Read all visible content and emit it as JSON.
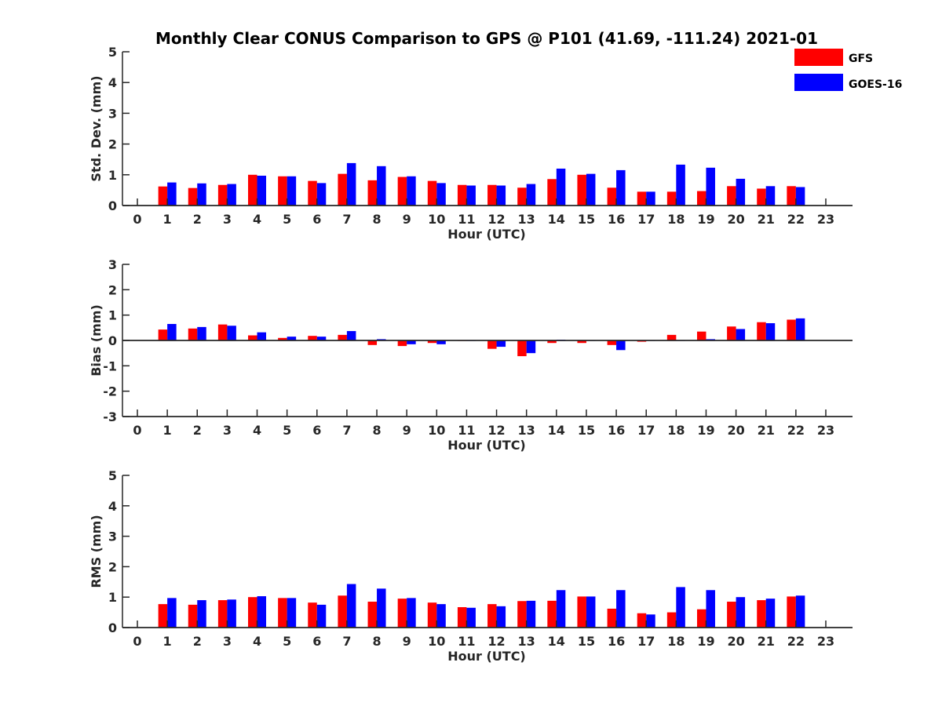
{
  "title": "Monthly Clear CONUS Comparison to GPS @ P101 (41.69, -111.24) 2021-01",
  "colors": {
    "GFS": "#ff0000",
    "GOES-16": "#0000ff",
    "axis": "#262626"
  },
  "legend": {
    "placement": "top-right",
    "entries": [
      "GFS",
      "GOES-16"
    ]
  },
  "chart_data": [
    {
      "type": "bar",
      "xlabel": "Hour (UTC)",
      "ylabel": "Std. Dev. (mm)",
      "ylim": [
        0,
        5
      ],
      "yticks": [
        0,
        1,
        2,
        3,
        4,
        5
      ],
      "categories": [
        "0",
        "1",
        "2",
        "3",
        "4",
        "5",
        "6",
        "7",
        "8",
        "9",
        "10",
        "11",
        "12",
        "13",
        "14",
        "15",
        "16",
        "17",
        "18",
        "19",
        "20",
        "21",
        "22",
        "23"
      ],
      "series": [
        {
          "name": "GFS",
          "values": [
            null,
            0.62,
            0.57,
            0.67,
            1.0,
            0.95,
            0.8,
            1.03,
            0.82,
            0.93,
            0.8,
            0.67,
            0.67,
            0.58,
            0.86,
            1.0,
            0.58,
            0.45,
            0.45,
            0.47,
            0.63,
            0.55,
            0.63,
            null
          ]
        },
        {
          "name": "GOES-16",
          "values": [
            null,
            0.75,
            0.72,
            0.7,
            0.97,
            0.95,
            0.73,
            1.38,
            1.28,
            0.95,
            0.73,
            0.65,
            0.65,
            0.7,
            1.2,
            1.03,
            1.15,
            0.45,
            1.33,
            1.23,
            0.87,
            0.63,
            0.6,
            null
          ]
        }
      ]
    },
    {
      "type": "bar",
      "xlabel": "Hour (UTC)",
      "ylabel": "Bias (mm)",
      "ylim": [
        -3,
        3
      ],
      "yticks": [
        -3,
        -2,
        -1,
        0,
        1,
        2,
        3
      ],
      "categories": [
        "0",
        "1",
        "2",
        "3",
        "4",
        "5",
        "6",
        "7",
        "8",
        "9",
        "10",
        "11",
        "12",
        "13",
        "14",
        "15",
        "16",
        "17",
        "18",
        "19",
        "20",
        "21",
        "22",
        "23"
      ],
      "series": [
        {
          "name": "GFS",
          "values": [
            null,
            0.43,
            0.47,
            0.63,
            0.2,
            0.1,
            0.18,
            0.22,
            -0.18,
            -0.22,
            -0.1,
            -0.02,
            -0.33,
            -0.62,
            -0.1,
            -0.1,
            -0.18,
            -0.05,
            0.22,
            0.35,
            0.55,
            0.72,
            0.82,
            null
          ]
        },
        {
          "name": "GOES-16",
          "values": [
            null,
            0.65,
            0.53,
            0.58,
            0.32,
            0.15,
            0.15,
            0.37,
            0.05,
            -0.15,
            -0.15,
            -0.02,
            -0.25,
            -0.5,
            0.03,
            0.0,
            -0.38,
            0.0,
            0.0,
            0.05,
            0.45,
            0.68,
            0.87,
            null
          ]
        }
      ]
    },
    {
      "type": "bar",
      "xlabel": "Hour (UTC)",
      "ylabel": "RMS (mm)",
      "ylim": [
        0,
        5
      ],
      "yticks": [
        0,
        1,
        2,
        3,
        4,
        5
      ],
      "categories": [
        "0",
        "1",
        "2",
        "3",
        "4",
        "5",
        "6",
        "7",
        "8",
        "9",
        "10",
        "11",
        "12",
        "13",
        "14",
        "15",
        "16",
        "17",
        "18",
        "19",
        "20",
        "21",
        "22",
        "23"
      ],
      "series": [
        {
          "name": "GFS",
          "values": [
            null,
            0.77,
            0.75,
            0.9,
            1.0,
            0.97,
            0.82,
            1.05,
            0.85,
            0.95,
            0.82,
            0.67,
            0.77,
            0.87,
            0.88,
            1.02,
            0.62,
            0.47,
            0.5,
            0.6,
            0.85,
            0.9,
            1.02,
            null
          ]
        },
        {
          "name": "GOES-16",
          "values": [
            null,
            0.97,
            0.9,
            0.92,
            1.03,
            0.97,
            0.75,
            1.43,
            1.28,
            0.97,
            0.77,
            0.65,
            0.7,
            0.88,
            1.23,
            1.02,
            1.23,
            0.43,
            1.33,
            1.23,
            1.0,
            0.95,
            1.05,
            null
          ]
        }
      ]
    }
  ]
}
